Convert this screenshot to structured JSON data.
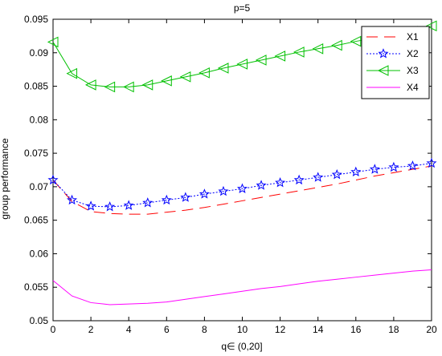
{
  "chart_data": {
    "type": "line",
    "title": "p=5",
    "xlabel": "q∈ (0,20]",
    "ylabel": "group performance",
    "xlim": [
      0,
      20
    ],
    "ylim": [
      0.05,
      0.095
    ],
    "xticks": [
      0,
      2,
      4,
      6,
      8,
      10,
      12,
      14,
      16,
      18,
      20
    ],
    "yticks": [
      0.05,
      0.055,
      0.06,
      0.065,
      0.07,
      0.075,
      0.08,
      0.085,
      0.09,
      0.095
    ],
    "ytick_labels": [
      "0.05",
      "0.055",
      "0.06",
      "0.065",
      "0.07",
      "0.075",
      "0.08",
      "0.085",
      "0.09",
      "0.095"
    ],
    "grid": false,
    "legend_position": "top-right",
    "series": [
      {
        "name": "X1",
        "color": "#ff0000",
        "style": "dashed",
        "marker": "none",
        "x": [
          0,
          1,
          2,
          3,
          4,
          5,
          6,
          7,
          8,
          9,
          10,
          11,
          12,
          13,
          14,
          15,
          16,
          17,
          18,
          19,
          20
        ],
        "y": [
          0.071,
          0.0678,
          0.0663,
          0.066,
          0.0659,
          0.0659,
          0.0662,
          0.0665,
          0.0669,
          0.0674,
          0.0679,
          0.0684,
          0.0689,
          0.0694,
          0.0699,
          0.0704,
          0.071,
          0.0716,
          0.0721,
          0.0726,
          0.0731
        ]
      },
      {
        "name": "X2",
        "color": "#0000ff",
        "style": "dotted",
        "marker": "star",
        "x": [
          0,
          1,
          2,
          3,
          4,
          5,
          6,
          7,
          8,
          9,
          10,
          11,
          12,
          13,
          14,
          15,
          16,
          17,
          18,
          19,
          20
        ],
        "y": [
          0.071,
          0.068,
          0.0671,
          0.067,
          0.0672,
          0.0676,
          0.068,
          0.0684,
          0.0689,
          0.0693,
          0.0697,
          0.0702,
          0.0706,
          0.071,
          0.0714,
          0.0718,
          0.0722,
          0.0726,
          0.0729,
          0.0731,
          0.0735
        ]
      },
      {
        "name": "X3",
        "color": "#00c000",
        "style": "solid",
        "marker": "triangle-left",
        "x": [
          0,
          1,
          2,
          3,
          4,
          5,
          6,
          7,
          8,
          9,
          10,
          11,
          12,
          13,
          14,
          15,
          16,
          17,
          18,
          19,
          20
        ],
        "y": [
          0.0916,
          0.0869,
          0.0852,
          0.0849,
          0.0849,
          0.0852,
          0.0858,
          0.0864,
          0.087,
          0.0877,
          0.0883,
          0.0889,
          0.0895,
          0.0901,
          0.0906,
          0.0911,
          0.0917,
          0.0922,
          0.0927,
          0.0932,
          0.094
        ]
      },
      {
        "name": "X4",
        "color": "#ff00ff",
        "style": "solid",
        "marker": "none",
        "x": [
          0,
          1,
          2,
          3,
          4,
          5,
          6,
          7,
          8,
          9,
          10,
          11,
          12,
          13,
          14,
          15,
          16,
          17,
          18,
          19,
          20
        ],
        "y": [
          0.056,
          0.0537,
          0.0527,
          0.0524,
          0.0525,
          0.0526,
          0.0528,
          0.0532,
          0.0536,
          0.054,
          0.0544,
          0.0548,
          0.0551,
          0.0555,
          0.0559,
          0.0562,
          0.0565,
          0.0568,
          0.0571,
          0.0574,
          0.0576
        ]
      }
    ]
  }
}
